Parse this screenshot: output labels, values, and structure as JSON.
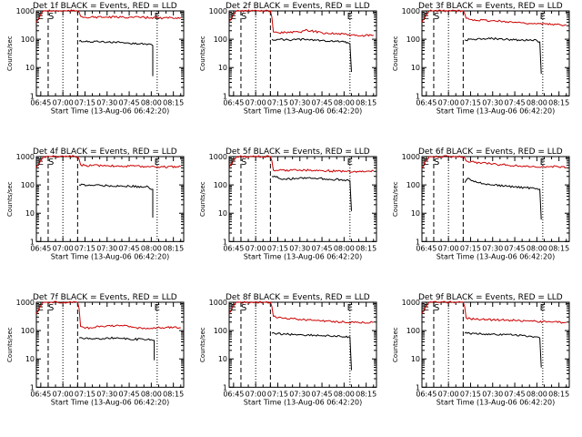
{
  "figure": {
    "panels": [
      {
        "title": "Det 1f BLACK = Events, RED = LLD"
      },
      {
        "title": "Det 2f BLACK = Events, RED = LLD"
      },
      {
        "title": "Det 3f BLACK = Events, RED = LLD"
      },
      {
        "title": "Det 4f BLACK = Events, RED = LLD"
      },
      {
        "title": "Det 5f BLACK = Events, RED = LLD"
      },
      {
        "title": "Det 6f BLACK = Events, RED = LLD"
      },
      {
        "title": "Det 7f BLACK = Events, RED = LLD"
      },
      {
        "title": "Det 8f BLACK = Events, RED = LLD"
      },
      {
        "title": "Det 9f BLACK = Events, RED = LLD"
      }
    ],
    "ylabel": "Counts/sec",
    "xlabel": "Start Time (13-Aug-06 06:42:20)",
    "x_tick_labels": [
      "06:45",
      "07:00",
      "07:15",
      "07:30",
      "07:45",
      "08:00",
      "08:15"
    ],
    "y_tick_labels": [
      "1",
      "10",
      "100",
      "1000"
    ],
    "markers": [
      "E",
      "S",
      "E"
    ],
    "colors": {
      "events": "#000000",
      "lld": "#cc0000"
    }
  },
  "chart_data": [
    {
      "type": "line",
      "title": "Det 1f BLACK = Events, RED = LLD",
      "xlabel": "Start Time (13-Aug-06 06:42:20)",
      "ylabel": "Counts/sec",
      "y_scale": "log",
      "ylim": [
        1,
        1000
      ],
      "xlim": [
        "06:42",
        "08:22"
      ],
      "x_ticks": [
        "06:45",
        "07:00",
        "07:15",
        "07:30",
        "07:45",
        "08:00",
        "08:15"
      ],
      "vlines": {
        "dashed": [
          "06:50",
          "07:10"
        ],
        "dotted": [
          "07:00",
          "08:04"
        ]
      },
      "labels": [
        {
          "text": "E",
          "x": "06:43"
        },
        {
          "text": "S",
          "x": "06:50"
        },
        {
          "text": "E",
          "x": "08:02"
        }
      ],
      "series": [
        {
          "name": "BLACK = Events",
          "x": [
            "07:11",
            "07:30",
            "07:45",
            "07:58",
            "08:01",
            "08:01"
          ],
          "y": [
            85,
            80,
            72,
            68,
            60,
            5
          ]
        },
        {
          "name": "RED = LLD",
          "x": [
            "06:42",
            "06:45",
            "06:47",
            "06:49",
            "07:10",
            "07:11",
            "07:12",
            "07:15",
            "07:30",
            "07:45",
            "08:00",
            "08:08",
            "08:20"
          ],
          "y": [
            400,
            750,
            1000,
            1000,
            1000,
            900,
            650,
            600,
            600,
            600,
            580,
            560,
            580
          ]
        }
      ]
    },
    {
      "type": "line",
      "title": "Det 2f BLACK = Events, RED = LLD",
      "xlabel": "Start Time (13-Aug-06 06:42:20)",
      "ylabel": "Counts/sec",
      "y_scale": "log",
      "ylim": [
        1,
        1000
      ],
      "xlim": [
        "06:42",
        "08:22"
      ],
      "x_ticks": [
        "06:45",
        "07:00",
        "07:15",
        "07:30",
        "07:45",
        "08:00",
        "08:15"
      ],
      "vlines": {
        "dashed": [
          "06:50",
          "07:10"
        ],
        "dotted": [
          "07:00",
          "08:04"
        ]
      },
      "labels": [
        {
          "text": "E",
          "x": "06:43"
        },
        {
          "text": "S",
          "x": "06:50"
        },
        {
          "text": "E",
          "x": "08:02"
        }
      ],
      "series": [
        {
          "name": "BLACK = Events",
          "x": [
            "07:11",
            "07:20",
            "07:35",
            "07:45",
            "07:55",
            "08:00",
            "08:04",
            "08:05"
          ],
          "y": [
            100,
            95,
            100,
            90,
            85,
            80,
            70,
            7
          ]
        },
        {
          "name": "RED = LLD",
          "x": [
            "06:42",
            "06:45",
            "06:47",
            "06:49",
            "07:10",
            "07:11",
            "07:12",
            "07:15",
            "07:30",
            "07:35",
            "07:45",
            "08:00",
            "08:10",
            "08:20"
          ],
          "y": [
            400,
            750,
            1000,
            1000,
            1000,
            600,
            180,
            170,
            180,
            210,
            170,
            150,
            130,
            140
          ]
        }
      ]
    },
    {
      "type": "line",
      "title": "Det 3f BLACK = Events, RED = LLD",
      "xlabel": "Start Time (13-Aug-06 06:42:20)",
      "ylabel": "Counts/sec",
      "y_scale": "log",
      "ylim": [
        1,
        1000
      ],
      "xlim": [
        "06:42",
        "08:22"
      ],
      "x_ticks": [
        "06:45",
        "07:00",
        "07:15",
        "07:30",
        "07:45",
        "08:00",
        "08:15"
      ],
      "vlines": {
        "dashed": [
          "06:50",
          "07:10"
        ],
        "dotted": [
          "07:00",
          "08:04"
        ]
      },
      "labels": [
        {
          "text": "E",
          "x": "06:43"
        },
        {
          "text": "S",
          "x": "06:50"
        },
        {
          "text": "E",
          "x": "08:02"
        }
      ],
      "series": [
        {
          "name": "BLACK = Events",
          "x": [
            "07:11",
            "07:30",
            "07:45",
            "08:00",
            "08:02",
            "08:03"
          ],
          "y": [
            95,
            105,
            95,
            90,
            80,
            6
          ]
        },
        {
          "name": "RED = LLD",
          "x": [
            "06:42",
            "06:45",
            "06:47",
            "06:49",
            "07:10",
            "07:11",
            "07:12",
            "07:15",
            "07:30",
            "07:45",
            "08:00",
            "08:20"
          ],
          "y": [
            400,
            750,
            1000,
            1000,
            1000,
            800,
            550,
            500,
            450,
            400,
            350,
            320
          ]
        }
      ]
    },
    {
      "type": "line",
      "title": "Det 4f BLACK = Events, RED = LLD",
      "xlabel": "Start Time (13-Aug-06 06:42:20)",
      "ylabel": "Counts/sec",
      "y_scale": "log",
      "ylim": [
        1,
        1000
      ],
      "xlim": [
        "06:42",
        "08:22"
      ],
      "x_ticks": [
        "06:45",
        "07:00",
        "07:15",
        "07:30",
        "07:45",
        "08:00",
        "08:15"
      ],
      "vlines": {
        "dashed": [
          "06:50",
          "07:10"
        ],
        "dotted": [
          "07:00",
          "08:04"
        ]
      },
      "labels": [
        {
          "text": "E",
          "x": "06:43"
        },
        {
          "text": "S",
          "x": "06:50"
        },
        {
          "text": "E",
          "x": "08:02"
        }
      ],
      "series": [
        {
          "name": "BLACK = Events",
          "x": [
            "07:11",
            "07:30",
            "07:45",
            "07:58",
            "08:01",
            "08:01"
          ],
          "y": [
            100,
            95,
            90,
            85,
            70,
            7
          ]
        },
        {
          "name": "RED = LLD",
          "x": [
            "06:42",
            "06:45",
            "06:47",
            "06:49",
            "07:10",
            "07:11",
            "07:12",
            "07:15",
            "07:30",
            "07:45",
            "08:00",
            "08:08",
            "08:20"
          ],
          "y": [
            400,
            750,
            1000,
            1000,
            1000,
            800,
            520,
            480,
            480,
            460,
            450,
            430,
            450
          ]
        }
      ]
    },
    {
      "type": "line",
      "title": "Det 5f BLACK = Events, RED = LLD",
      "xlabel": "Start Time (13-Aug-06 06:42:20)",
      "ylabel": "Counts/sec",
      "y_scale": "log",
      "ylim": [
        1,
        1000
      ],
      "xlim": [
        "06:42",
        "08:22"
      ],
      "x_ticks": [
        "06:45",
        "07:00",
        "07:15",
        "07:30",
        "07:45",
        "08:00",
        "08:15"
      ],
      "vlines": {
        "dashed": [
          "06:50",
          "07:10"
        ],
        "dotted": [
          "07:00",
          "08:04"
        ]
      },
      "labels": [
        {
          "text": "E",
          "x": "06:43"
        },
        {
          "text": "S",
          "x": "06:50"
        },
        {
          "text": "E",
          "x": "08:02"
        }
      ],
      "series": [
        {
          "name": "BLACK = Events",
          "x": [
            "07:11",
            "07:20",
            "07:35",
            "07:50",
            "08:00",
            "08:04",
            "08:05"
          ],
          "y": [
            200,
            160,
            180,
            160,
            150,
            140,
            12
          ]
        },
        {
          "name": "RED = LLD",
          "x": [
            "06:42",
            "06:45",
            "06:47",
            "06:49",
            "07:10",
            "07:11",
            "07:12",
            "07:15",
            "07:30",
            "07:45",
            "08:00",
            "08:10",
            "08:20"
          ],
          "y": [
            400,
            750,
            1000,
            1000,
            1000,
            700,
            330,
            320,
            340,
            320,
            300,
            290,
            310
          ]
        }
      ]
    },
    {
      "type": "line",
      "title": "Det 6f BLACK = Events, RED = LLD",
      "xlabel": "Start Time (13-Aug-06 06:42:20)",
      "ylabel": "Counts/sec",
      "y_scale": "log",
      "ylim": [
        1,
        1000
      ],
      "xlim": [
        "06:42",
        "08:22"
      ],
      "x_ticks": [
        "06:45",
        "07:00",
        "07:15",
        "07:30",
        "07:45",
        "08:00",
        "08:15"
      ],
      "vlines": {
        "dashed": [
          "06:50",
          "07:10"
        ],
        "dotted": [
          "07:00",
          "08:04"
        ]
      },
      "labels": [
        {
          "text": "E",
          "x": "06:43"
        },
        {
          "text": "S",
          "x": "06:50"
        },
        {
          "text": "E",
          "x": "08:02"
        }
      ],
      "series": [
        {
          "name": "BLACK = Events",
          "x": [
            "07:11",
            "07:13",
            "07:20",
            "07:30",
            "07:45",
            "08:00",
            "08:02",
            "08:03"
          ],
          "y": [
            120,
            170,
            120,
            100,
            85,
            75,
            70,
            6
          ]
        },
        {
          "name": "RED = LLD",
          "x": [
            "06:42",
            "06:45",
            "06:47",
            "06:49",
            "07:10",
            "07:11",
            "07:12",
            "07:15",
            "07:30",
            "07:45",
            "08:00",
            "08:10",
            "08:20"
          ],
          "y": [
            400,
            750,
            1000,
            1000,
            1000,
            900,
            700,
            650,
            550,
            480,
            420,
            450,
            420
          ]
        }
      ]
    },
    {
      "type": "line",
      "title": "Det 7f BLACK = Events, RED = LLD",
      "xlabel": "Start Time (13-Aug-06 06:42:20)",
      "ylabel": "Counts/sec",
      "y_scale": "log",
      "ylim": [
        1,
        1000
      ],
      "xlim": [
        "06:42",
        "08:22"
      ],
      "x_ticks": [
        "06:45",
        "07:00",
        "07:15",
        "07:30",
        "07:45",
        "08:00",
        "08:15"
      ],
      "vlines": {
        "dashed": [
          "06:50",
          "07:10"
        ],
        "dotted": [
          "07:00",
          "08:04"
        ]
      },
      "labels": [
        {
          "text": "E",
          "x": "06:43"
        },
        {
          "text": "S",
          "x": "06:50"
        },
        {
          "text": "E",
          "x": "08:02"
        }
      ],
      "series": [
        {
          "name": "BLACK = Events",
          "x": [
            "07:11",
            "07:20",
            "07:35",
            "07:45",
            "08:00",
            "08:02",
            "08:02"
          ],
          "y": [
            55,
            50,
            55,
            50,
            48,
            45,
            9
          ]
        },
        {
          "name": "RED = LLD",
          "x": [
            "06:42",
            "06:45",
            "06:47",
            "06:49",
            "07:10",
            "07:11",
            "07:12",
            "07:15",
            "07:30",
            "07:40",
            "07:50",
            "08:00",
            "08:10",
            "08:20"
          ],
          "y": [
            400,
            750,
            1000,
            1000,
            1000,
            600,
            140,
            120,
            150,
            150,
            125,
            120,
            130,
            125
          ]
        }
      ]
    },
    {
      "type": "line",
      "title": "Det 8f BLACK = Events, RED = LLD",
      "xlabel": "Start Time (13-Aug-06 06:42:20)",
      "ylabel": "Counts/sec",
      "y_scale": "log",
      "ylim": [
        1,
        1000
      ],
      "xlim": [
        "06:42",
        "08:22"
      ],
      "x_ticks": [
        "06:45",
        "07:00",
        "07:15",
        "07:30",
        "07:45",
        "08:00",
        "08:15"
      ],
      "vlines": {
        "dashed": [
          "06:50",
          "07:10"
        ],
        "dotted": [
          "07:00",
          "08:04"
        ]
      },
      "labels": [
        {
          "text": "E",
          "x": "06:43"
        },
        {
          "text": "S",
          "x": "06:50"
        },
        {
          "text": "E",
          "x": "08:02"
        }
      ],
      "series": [
        {
          "name": "BLACK = Events",
          "x": [
            "07:11",
            "07:20",
            "07:35",
            "07:50",
            "08:00",
            "08:04",
            "08:05"
          ],
          "y": [
            80,
            75,
            70,
            65,
            60,
            60,
            4
          ]
        },
        {
          "name": "RED = LLD",
          "x": [
            "06:42",
            "06:45",
            "06:47",
            "06:49",
            "07:10",
            "07:11",
            "07:12",
            "07:15",
            "07:30",
            "07:45",
            "08:00",
            "08:10",
            "08:20"
          ],
          "y": [
            400,
            750,
            1000,
            1000,
            1000,
            700,
            320,
            280,
            250,
            220,
            200,
            190,
            200
          ]
        }
      ]
    },
    {
      "type": "line",
      "title": "Det 9f BLACK = Events, RED = LLD",
      "xlabel": "Start Time (13-Aug-06 06:42:20)",
      "ylabel": "Counts/sec",
      "y_scale": "log",
      "ylim": [
        1,
        1000
      ],
      "xlim": [
        "06:42",
        "08:22"
      ],
      "x_ticks": [
        "06:45",
        "07:00",
        "07:15",
        "07:30",
        "07:45",
        "08:00",
        "08:15"
      ],
      "vlines": {
        "dashed": [
          "06:50",
          "07:10"
        ],
        "dotted": [
          "07:00",
          "08:04"
        ]
      },
      "labels": [
        {
          "text": "E",
          "x": "06:43"
        },
        {
          "text": "S",
          "x": "06:50"
        },
        {
          "text": "E",
          "x": "08:02"
        }
      ],
      "series": [
        {
          "name": "BLACK = Events",
          "x": [
            "07:11",
            "07:30",
            "07:45",
            "08:00",
            "08:02",
            "08:03"
          ],
          "y": [
            80,
            75,
            70,
            60,
            55,
            5
          ]
        },
        {
          "name": "RED = LLD",
          "x": [
            "06:42",
            "06:45",
            "06:47",
            "06:49",
            "07:10",
            "07:11",
            "07:12",
            "07:15",
            "07:30",
            "07:45",
            "08:00",
            "08:10",
            "08:20"
          ],
          "y": [
            400,
            750,
            1000,
            1000,
            1000,
            700,
            280,
            260,
            240,
            230,
            210,
            200,
            190
          ]
        }
      ]
    }
  ]
}
